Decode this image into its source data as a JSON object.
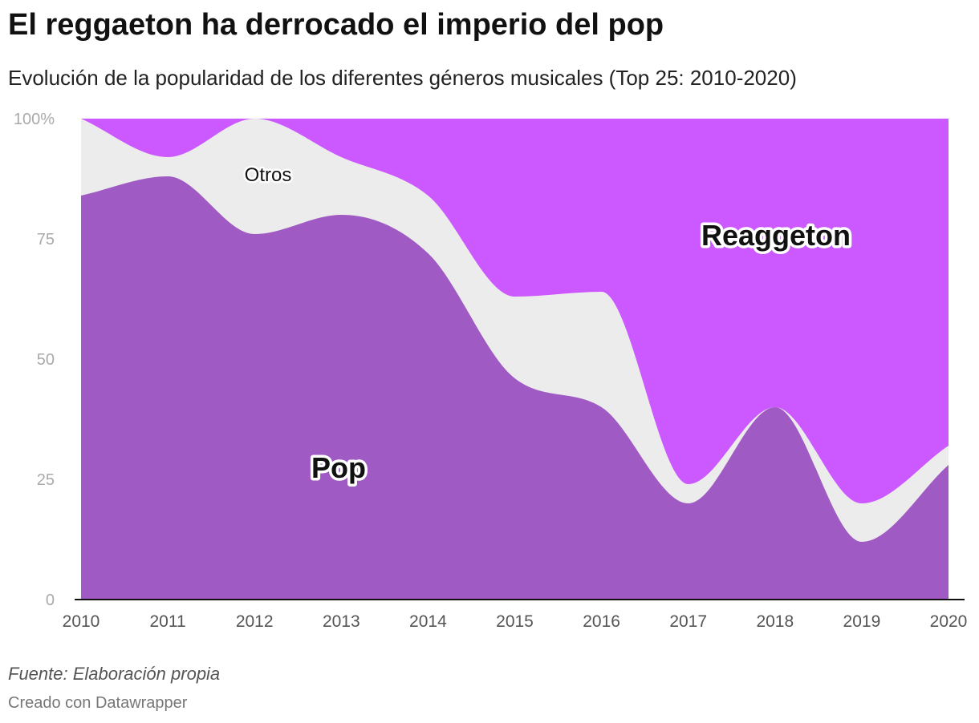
{
  "header": {
    "title": "El reggaeton ha derrocado el imperio del pop",
    "subtitle": "Evolución de la popularidad de los diferentes géneros musicales (Top 25: 2010-2020)"
  },
  "footer": {
    "source": "Fuente: Elaboración propia",
    "credit": "Creado con Datawrapper"
  },
  "colors": {
    "pop": "#a05ac4",
    "otros": "#ececec",
    "reggaeton": "#cc58ff",
    "axis": "#111111"
  },
  "chart_data": {
    "type": "area",
    "stacked": true,
    "x": [
      "2010",
      "2011",
      "2012",
      "2013",
      "2014",
      "2015",
      "2016",
      "2017",
      "2018",
      "2019",
      "2020"
    ],
    "y_ticks": [
      "100%",
      "75",
      "50",
      "25",
      "0"
    ],
    "ylim": [
      0,
      100
    ],
    "series": [
      {
        "name": "Pop",
        "values": [
          84,
          88,
          76,
          80,
          72,
          46,
          40,
          20,
          40,
          12,
          28
        ]
      },
      {
        "name": "Otros",
        "values": [
          16,
          4,
          24,
          12,
          12,
          17,
          24,
          4,
          0,
          8,
          4
        ]
      },
      {
        "name": "Reaggeton",
        "values": [
          0,
          8,
          0,
          8,
          16,
          37,
          36,
          76,
          60,
          80,
          68
        ]
      }
    ],
    "labels": {
      "pop": "Pop",
      "otros": "Otros",
      "reggaeton": "Reaggeton"
    }
  }
}
